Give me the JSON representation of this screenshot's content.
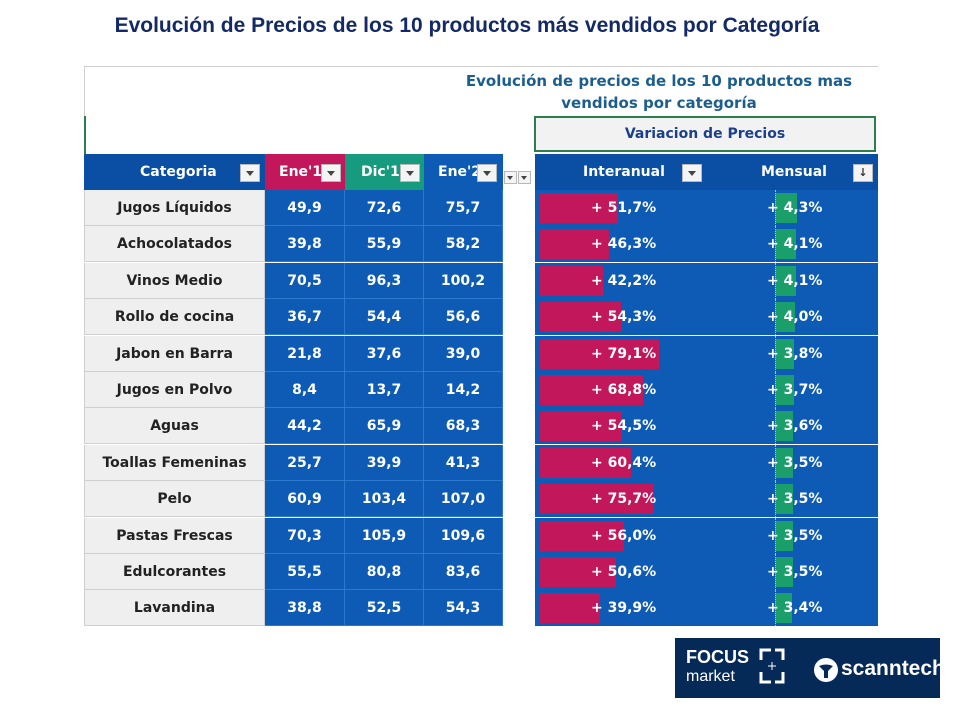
{
  "title": "Evolución de Precios de los 10 productos más vendidos por Categoría",
  "subtitle_line1": "Evolución de precios de los 10 productos mas",
  "subtitle_line2": "vendidos por categoría",
  "variation_header": "Variacion de Precios",
  "colors": {
    "header_blue": "#0a4fa3",
    "ene1_header": "#c2185b",
    "dic1_header": "#169b7f",
    "ene2_header": "#0e5bb5",
    "interanual_bar": "#c2185b",
    "mensual_bar": "#1a9e6a",
    "cell_blue": "#0e5bb5"
  },
  "columns": {
    "categoria": "Categoria",
    "ene1": "Ene'1",
    "dic1": "Dic'1",
    "ene2": "Ene'2",
    "interanual": "Interanual",
    "mensual": "Mensual"
  },
  "rows": [
    {
      "categoria": "Jugos Líquidos",
      "ene1": "49,9",
      "dic1": "72,6",
      "ene2": "75,7",
      "interanual": "+ 51,7%",
      "interanual_value": 51.7,
      "mensual": "+ 4,3%",
      "mensual_value": 4.3
    },
    {
      "categoria": "Achocolatados",
      "ene1": "39,8",
      "dic1": "55,9",
      "ene2": "58,2",
      "interanual": "+ 46,3%",
      "interanual_value": 46.3,
      "mensual": "+ 4,1%",
      "mensual_value": 4.1
    },
    {
      "categoria": "Vinos Medio",
      "ene1": "70,5",
      "dic1": "96,3",
      "ene2": "100,2",
      "interanual": "+ 42,2%",
      "interanual_value": 42.2,
      "mensual": "+ 4,1%",
      "mensual_value": 4.1
    },
    {
      "categoria": "Rollo de cocina",
      "ene1": "36,7",
      "dic1": "54,4",
      "ene2": "56,6",
      "interanual": "+ 54,3%",
      "interanual_value": 54.3,
      "mensual": "+ 4,0%",
      "mensual_value": 4.0
    },
    {
      "categoria": "Jabon en Barra",
      "ene1": "21,8",
      "dic1": "37,6",
      "ene2": "39,0",
      "interanual": "+ 79,1%",
      "interanual_value": 79.1,
      "mensual": "+ 3,8%",
      "mensual_value": 3.8
    },
    {
      "categoria": "Jugos en Polvo",
      "ene1": "8,4",
      "dic1": "13,7",
      "ene2": "14,2",
      "interanual": "+ 68,8%",
      "interanual_value": 68.8,
      "mensual": "+ 3,7%",
      "mensual_value": 3.7
    },
    {
      "categoria": "Aguas",
      "ene1": "44,2",
      "dic1": "65,9",
      "ene2": "68,3",
      "interanual": "+ 54,5%",
      "interanual_value": 54.5,
      "mensual": "+ 3,6%",
      "mensual_value": 3.6
    },
    {
      "categoria": "Toallas Femeninas",
      "ene1": "25,7",
      "dic1": "39,9",
      "ene2": "41,3",
      "interanual": "+ 60,4%",
      "interanual_value": 60.4,
      "mensual": "+ 3,5%",
      "mensual_value": 3.5
    },
    {
      "categoria": "Pelo",
      "ene1": "60,9",
      "dic1": "103,4",
      "ene2": "107,0",
      "interanual": "+ 75,7%",
      "interanual_value": 75.7,
      "mensual": "+ 3,5%",
      "mensual_value": 3.5
    },
    {
      "categoria": "Pastas Frescas",
      "ene1": "70,3",
      "dic1": "105,9",
      "ene2": "109,6",
      "interanual": "+ 56,0%",
      "interanual_value": 56.0,
      "mensual": "+ 3,5%",
      "mensual_value": 3.5
    },
    {
      "categoria": "Edulcorantes",
      "ene1": "55,5",
      "dic1": "80,8",
      "ene2": "83,6",
      "interanual": "+ 50,6%",
      "interanual_value": 50.6,
      "mensual": "+ 3,5%",
      "mensual_value": 3.5
    },
    {
      "categoria": "Lavandina",
      "ene1": "38,8",
      "dic1": "52,5",
      "ene2": "54,3",
      "interanual": "+ 39,9%",
      "interanual_value": 39.9,
      "mensual": "+ 3,4%",
      "mensual_value": 3.4
    }
  ],
  "logos": {
    "focus_word": "FOCUS",
    "market_word": "market",
    "scanntech_word": "scanntech"
  }
}
